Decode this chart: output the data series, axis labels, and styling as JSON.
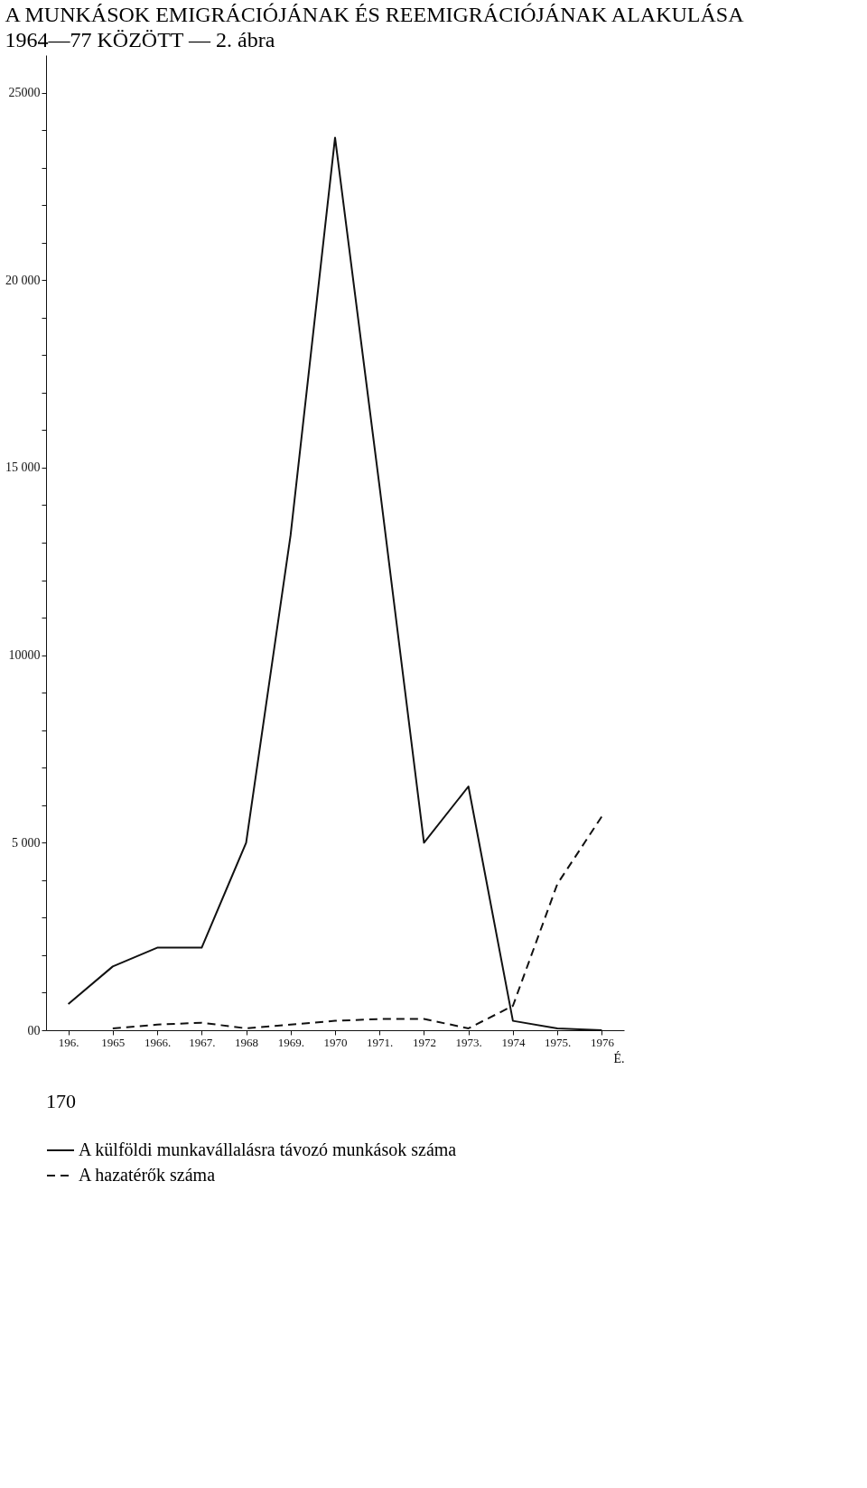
{
  "chart_data": {
    "type": "line",
    "title": "A MUNKÁSOK EMIGRÁCIÓJÁNAK ÉS REEMIGRÁCIÓJÁNAK ALAKULÁSA 1964—77 KÖZÖTT — 2. ábra",
    "xlabel": "É.",
    "categories": [
      "196.",
      "1965",
      "1966.",
      "1967.",
      "1968",
      "1969.",
      "1970",
      "1971.",
      "1972",
      "1973.",
      "1974",
      "1975.",
      "1976"
    ],
    "series": [
      {
        "name": "A külföldi munkavállalásra távozó munkások száma",
        "color": "#111111",
        "line_style": "solid",
        "values": [
          700,
          1700,
          2200,
          2200,
          5000,
          13200,
          23800,
          14500,
          5000,
          6500,
          250,
          50,
          0
        ]
      },
      {
        "name": "A hazatérők száma",
        "color": "#111111",
        "line_style": "dashed",
        "values": [
          null,
          50,
          150,
          200,
          50,
          150,
          250,
          300,
          300,
          50,
          650,
          3900,
          5700
        ]
      }
    ],
    "ylim": [
      0,
      26000
    ],
    "yticks": [
      {
        "value": 0,
        "label": "00"
      },
      {
        "value": 1000,
        "label": null
      },
      {
        "value": 2000,
        "label": null
      },
      {
        "value": 3000,
        "label": null
      },
      {
        "value": 4000,
        "label": null
      },
      {
        "value": 5000,
        "label": "5 000"
      },
      {
        "value": 6000,
        "label": null
      },
      {
        "value": 7000,
        "label": null
      },
      {
        "value": 8000,
        "label": null
      },
      {
        "value": 9000,
        "label": null
      },
      {
        "value": 10000,
        "label": "10000"
      },
      {
        "value": 11000,
        "label": null
      },
      {
        "value": 12000,
        "label": null
      },
      {
        "value": 13000,
        "label": null
      },
      {
        "value": 14000,
        "label": null
      },
      {
        "value": 15000,
        "label": "15 000"
      },
      {
        "value": 16000,
        "label": null
      },
      {
        "value": 17000,
        "label": null
      },
      {
        "value": 18000,
        "label": null
      },
      {
        "value": 19000,
        "label": null
      },
      {
        "value": 20000,
        "label": "20 000"
      },
      {
        "value": 21000,
        "label": null
      },
      {
        "value": 22000,
        "label": null
      },
      {
        "value": 23000,
        "label": null
      },
      {
        "value": 24000,
        "label": null
      },
      {
        "value": 25000,
        "label": "25000"
      }
    ],
    "grid": false,
    "marker": "none",
    "legend": "bottom",
    "annotations": [
      "170"
    ]
  }
}
